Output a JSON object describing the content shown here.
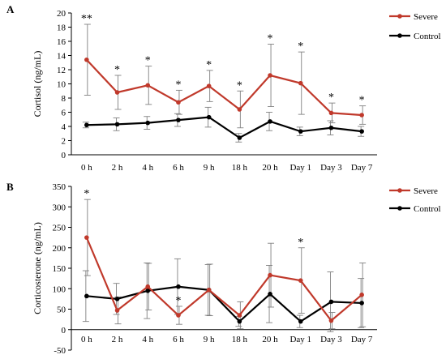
{
  "chart_data": [
    {
      "type": "line",
      "panel_label": "A",
      "ylabel": "Cortisol (ng/mL)",
      "xlabel": "",
      "categories": [
        "0 h",
        "2 h",
        "4 h",
        "6 h",
        "9 h",
        "18 h",
        "20 h",
        "Day 1",
        "Day 3",
        "Day 7"
      ],
      "ylim": [
        0,
        20
      ],
      "yticks": [
        0,
        2,
        4,
        6,
        8,
        10,
        12,
        14,
        16,
        18,
        20
      ],
      "legend_position": "top-right",
      "series": [
        {
          "name": "Severe",
          "color": "#c0392b",
          "values": [
            13.4,
            8.8,
            9.8,
            7.4,
            9.7,
            6.4,
            11.2,
            10.1,
            5.9,
            5.6
          ],
          "errors": [
            5.0,
            2.4,
            2.7,
            1.7,
            2.2,
            2.6,
            4.4,
            4.4,
            1.4,
            1.3
          ]
        },
        {
          "name": "Control",
          "color": "#000000",
          "values": [
            4.2,
            4.3,
            4.5,
            4.9,
            5.3,
            2.4,
            4.7,
            3.3,
            3.8,
            3.3
          ],
          "errors": [
            0.4,
            0.9,
            0.9,
            0.9,
            1.4,
            0.6,
            1.3,
            0.6,
            1.0,
            0.7
          ]
        }
      ],
      "significance": [
        "**",
        "*",
        "*",
        "*",
        "*",
        "*",
        "*",
        "*",
        "*",
        "*"
      ]
    },
    {
      "type": "line",
      "panel_label": "B",
      "ylabel": "Corticosterone (ng/mL)",
      "xlabel": "",
      "categories": [
        "0 h",
        "2 h",
        "4 h",
        "6 h",
        "9 h",
        "18 h",
        "20 h",
        "Day 1",
        "Day 3",
        "Day 7"
      ],
      "ylim": [
        -50,
        350
      ],
      "yticks": [
        -50,
        0,
        50,
        100,
        150,
        200,
        250,
        300,
        350
      ],
      "legend_position": "top-right",
      "series": [
        {
          "name": "Severe",
          "color": "#c0392b",
          "values": [
            225,
            47,
            105,
            35,
            97,
            35,
            133,
            120,
            22,
            85
          ],
          "errors": [
            93,
            33,
            57,
            22,
            63,
            33,
            78,
            80,
            20,
            78
          ]
        },
        {
          "name": "Control",
          "color": "#000000",
          "values": [
            82,
            75,
            95,
            105,
            97,
            20,
            87,
            20,
            68,
            65
          ],
          "errors": [
            62,
            38,
            68,
            68,
            62,
            12,
            70,
            15,
            73,
            60
          ]
        }
      ],
      "significance": [
        "*",
        "",
        "",
        "*",
        "",
        "",
        "",
        "*",
        "",
        ""
      ]
    }
  ]
}
